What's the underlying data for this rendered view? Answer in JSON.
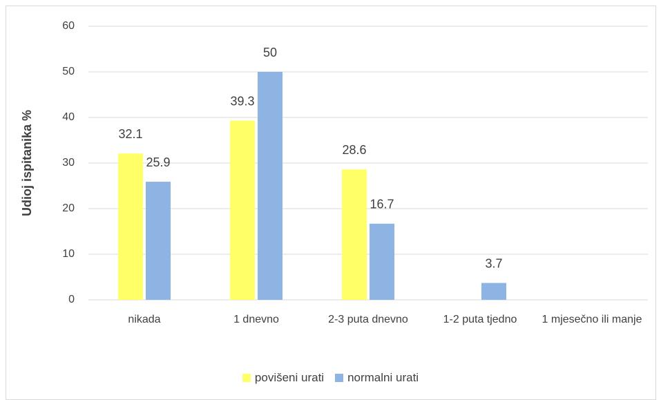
{
  "chart_data": {
    "type": "bar",
    "categories": [
      "nikada",
      "1 dnevno",
      "2-3 puta dnevno",
      "1-2 puta tjedno",
      "1 mjesečno ili manje"
    ],
    "series": [
      {
        "name": "povišeni urati",
        "color": "#ffff66",
        "values": [
          32.1,
          39.3,
          28.6,
          null,
          null
        ]
      },
      {
        "name": "normalni urati",
        "color": "#8eb4e3",
        "values": [
          25.9,
          50,
          16.7,
          3.7,
          null
        ]
      }
    ],
    "ylabel": "Udioj ispitanika %",
    "ylim": [
      0,
      60
    ],
    "yticks": [
      0,
      10,
      20,
      30,
      40,
      50,
      60
    ],
    "grid": true,
    "legend": "bottom"
  }
}
